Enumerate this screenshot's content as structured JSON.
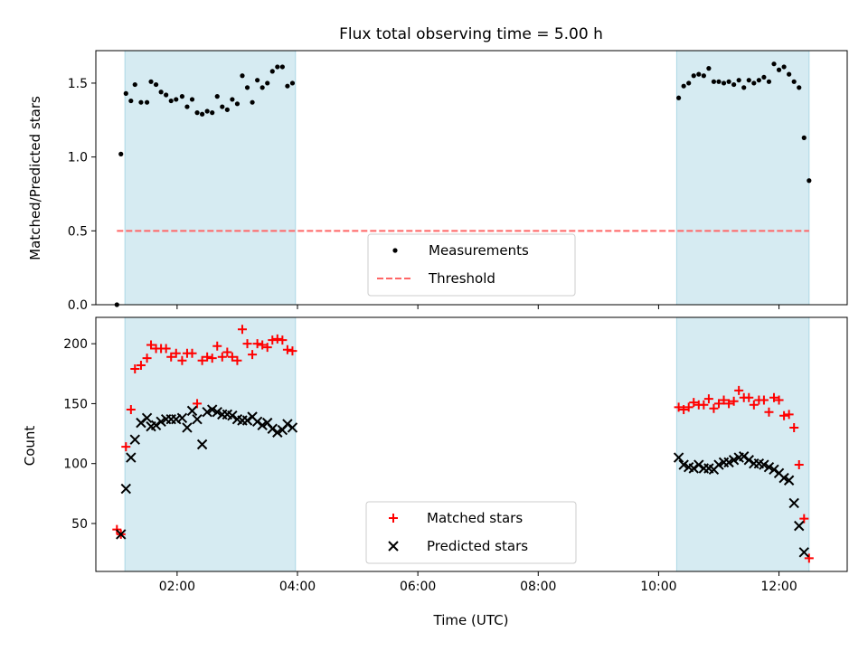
{
  "chart_data": [
    {
      "type": "scatter",
      "title": "Flux total observing time = 5.00 h",
      "xlabel": "",
      "ylabel": "Matched/Predicted stars",
      "xlim": [
        "00:39",
        "13:08"
      ],
      "ylim": [
        0,
        1.72
      ],
      "yticks": [
        "0.0",
        "0.5",
        "1.0",
        "1.5"
      ],
      "xticks": [
        "02:00",
        "04:00",
        "06:00",
        "08:00",
        "10:00",
        "12:00"
      ],
      "shaded_intervals": [
        [
          "01:08",
          "03:58"
        ],
        [
          "10:18",
          "12:30"
        ]
      ],
      "threshold": 0.5,
      "legend": {
        "placement": "lower center",
        "entries": [
          "Measurements",
          "Threshold"
        ]
      },
      "series": [
        {
          "name": "Measurements",
          "points": [
            [
              "01:00",
              0.0
            ],
            [
              "01:04",
              1.02
            ],
            [
              "01:09",
              1.43
            ],
            [
              "01:14",
              1.38
            ],
            [
              "01:18",
              1.49
            ],
            [
              "01:24",
              1.37
            ],
            [
              "01:30",
              1.37
            ],
            [
              "01:34",
              1.51
            ],
            [
              "01:39",
              1.49
            ],
            [
              "01:44",
              1.44
            ],
            [
              "01:49",
              1.42
            ],
            [
              "01:54",
              1.38
            ],
            [
              "01:59",
              1.39
            ],
            [
              "02:05",
              1.41
            ],
            [
              "02:10",
              1.34
            ],
            [
              "02:15",
              1.39
            ],
            [
              "02:20",
              1.3
            ],
            [
              "02:25",
              1.29
            ],
            [
              "02:30",
              1.31
            ],
            [
              "02:35",
              1.3
            ],
            [
              "02:40",
              1.41
            ],
            [
              "02:45",
              1.34
            ],
            [
              "02:50",
              1.32
            ],
            [
              "02:55",
              1.39
            ],
            [
              "03:00",
              1.36
            ],
            [
              "03:05",
              1.55
            ],
            [
              "03:10",
              1.47
            ],
            [
              "03:15",
              1.37
            ],
            [
              "03:20",
              1.52
            ],
            [
              "03:25",
              1.47
            ],
            [
              "03:30",
              1.5
            ],
            [
              "03:35",
              1.58
            ],
            [
              "03:40",
              1.61
            ],
            [
              "03:45",
              1.61
            ],
            [
              "03:50",
              1.48
            ],
            [
              "03:55",
              1.5
            ],
            [
              "10:20",
              1.4
            ],
            [
              "10:25",
              1.48
            ],
            [
              "10:30",
              1.5
            ],
            [
              "10:35",
              1.55
            ],
            [
              "10:40",
              1.56
            ],
            [
              "10:45",
              1.55
            ],
            [
              "10:50",
              1.6
            ],
            [
              "10:55",
              1.51
            ],
            [
              "11:00",
              1.51
            ],
            [
              "11:05",
              1.5
            ],
            [
              "11:10",
              1.51
            ],
            [
              "11:15",
              1.49
            ],
            [
              "11:20",
              1.52
            ],
            [
              "11:25",
              1.47
            ],
            [
              "11:30",
              1.52
            ],
            [
              "11:35",
              1.5
            ],
            [
              "11:40",
              1.52
            ],
            [
              "11:45",
              1.54
            ],
            [
              "11:50",
              1.51
            ],
            [
              "11:55",
              1.63
            ],
            [
              "12:00",
              1.59
            ],
            [
              "12:05",
              1.61
            ],
            [
              "12:10",
              1.56
            ],
            [
              "12:15",
              1.51
            ],
            [
              "12:20",
              1.47
            ],
            [
              "12:25",
              1.13
            ],
            [
              "12:30",
              0.84
            ]
          ]
        },
        {
          "name": "Threshold",
          "line": [
            [
              "01:00",
              0.5
            ],
            [
              "12:30",
              0.5
            ]
          ]
        }
      ]
    },
    {
      "type": "scatter",
      "title": "",
      "xlabel": "Time (UTC)",
      "ylabel": "Count",
      "xlim": [
        "00:39",
        "13:08"
      ],
      "ylim": [
        10,
        222
      ],
      "yticks": [
        "50",
        "100",
        "150",
        "200"
      ],
      "xticks": [
        "02:00",
        "04:00",
        "06:00",
        "08:00",
        "10:00",
        "12:00"
      ],
      "shaded_intervals": [
        [
          "01:08",
          "03:58"
        ],
        [
          "10:18",
          "12:30"
        ]
      ],
      "legend": {
        "placement": "lower center",
        "entries": [
          "Matched stars",
          "Predicted stars"
        ]
      },
      "series": [
        {
          "name": "Matched stars",
          "points": [
            [
              "01:00",
              45
            ],
            [
              "01:04",
              41
            ],
            [
              "01:09",
              114
            ],
            [
              "01:14",
              145
            ],
            [
              "01:18",
              179
            ],
            [
              "01:24",
              182
            ],
            [
              "01:30",
              188
            ],
            [
              "01:34",
              199
            ],
            [
              "01:39",
              196
            ],
            [
              "01:44",
              196
            ],
            [
              "01:49",
              196
            ],
            [
              "01:54",
              189
            ],
            [
              "01:59",
              192
            ],
            [
              "02:05",
              186
            ],
            [
              "02:10",
              192
            ],
            [
              "02:15",
              192
            ],
            [
              "02:20",
              150
            ],
            [
              "02:25",
              186
            ],
            [
              "02:30",
              189
            ],
            [
              "02:35",
              188
            ],
            [
              "02:40",
              198
            ],
            [
              "02:45",
              189
            ],
            [
              "02:50",
              193
            ],
            [
              "02:55",
              189
            ],
            [
              "03:00",
              186
            ],
            [
              "03:05",
              212
            ],
            [
              "03:10",
              200
            ],
            [
              "03:15",
              191
            ],
            [
              "03:20",
              200
            ],
            [
              "03:25",
              199
            ],
            [
              "03:30",
              197
            ],
            [
              "03:35",
              203
            ],
            [
              "03:40",
              204
            ],
            [
              "03:45",
              203
            ],
            [
              "03:50",
              195
            ],
            [
              "03:55",
              194
            ],
            [
              "10:20",
              147
            ],
            [
              "10:25",
              145
            ],
            [
              "10:30",
              147
            ],
            [
              "10:35",
              151
            ],
            [
              "10:40",
              149
            ],
            [
              "10:45",
              149
            ],
            [
              "10:50",
              154
            ],
            [
              "10:55",
              146
            ],
            [
              "11:00",
              150
            ],
            [
              "11:05",
              153
            ],
            [
              "11:10",
              150
            ],
            [
              "11:15",
              152
            ],
            [
              "11:20",
              161
            ],
            [
              "11:25",
              155
            ],
            [
              "11:30",
              155
            ],
            [
              "11:35",
              149
            ],
            [
              "11:40",
              153
            ],
            [
              "11:45",
              153
            ],
            [
              "11:50",
              143
            ],
            [
              "11:55",
              155
            ],
            [
              "12:00",
              153
            ],
            [
              "12:05",
              140
            ],
            [
              "12:10",
              141
            ],
            [
              "12:15",
              130
            ],
            [
              "12:20",
              99
            ],
            [
              "12:25",
              54
            ],
            [
              "12:30",
              21
            ]
          ]
        },
        {
          "name": "Predicted stars",
          "points": [
            [
              "01:04",
              41
            ],
            [
              "01:09",
              79
            ],
            [
              "01:14",
              105
            ],
            [
              "01:18",
              120
            ],
            [
              "01:24",
              134
            ],
            [
              "01:30",
              138
            ],
            [
              "01:34",
              131
            ],
            [
              "01:39",
              132
            ],
            [
              "01:44",
              135
            ],
            [
              "01:49",
              137
            ],
            [
              "01:54",
              137
            ],
            [
              "01:59",
              137
            ],
            [
              "02:05",
              138
            ],
            [
              "02:10",
              130
            ],
            [
              "02:15",
              144
            ],
            [
              "02:20",
              137
            ],
            [
              "02:25",
              116
            ],
            [
              "02:30",
              143
            ],
            [
              "02:35",
              145
            ],
            [
              "02:40",
              143
            ],
            [
              "02:45",
              141
            ],
            [
              "02:50",
              141
            ],
            [
              "02:55",
              140
            ],
            [
              "03:00",
              137
            ],
            [
              "03:05",
              136
            ],
            [
              "03:10",
              136
            ],
            [
              "03:15",
              139
            ],
            [
              "03:20",
              135
            ],
            [
              "03:25",
              132
            ],
            [
              "03:30",
              134
            ],
            [
              "03:35",
              129
            ],
            [
              "03:40",
              126
            ],
            [
              "03:45",
              128
            ],
            [
              "03:50",
              133
            ],
            [
              "03:55",
              130
            ],
            [
              "10:20",
              105
            ],
            [
              "10:25",
              99
            ],
            [
              "10:30",
              97
            ],
            [
              "10:35",
              96
            ],
            [
              "10:40",
              99
            ],
            [
              "10:45",
              96
            ],
            [
              "10:50",
              96
            ],
            [
              "10:55",
              95
            ],
            [
              "11:00",
              99
            ],
            [
              "11:05",
              101
            ],
            [
              "11:10",
              101
            ],
            [
              "11:15",
              103
            ],
            [
              "11:20",
              105
            ],
            [
              "11:25",
              106
            ],
            [
              "11:30",
              103
            ],
            [
              "11:35",
              100
            ],
            [
              "11:40",
              100
            ],
            [
              "11:45",
              99
            ],
            [
              "11:50",
              97
            ],
            [
              "11:55",
              95
            ],
            [
              "12:00",
              92
            ],
            [
              "12:05",
              88
            ],
            [
              "12:10",
              86
            ],
            [
              "12:15",
              67
            ],
            [
              "12:20",
              48
            ],
            [
              "12:25",
              26
            ]
          ]
        }
      ]
    }
  ],
  "colors": {
    "measurement": "#000000",
    "threshold": "#ff6666",
    "matched": "#ff0000",
    "predicted": "#000000",
    "shade": "#add8e6"
  }
}
